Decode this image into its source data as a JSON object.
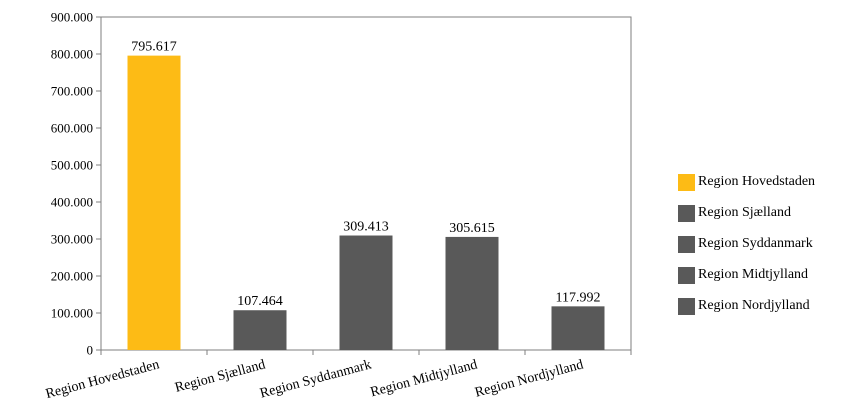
{
  "chart_data": {
    "type": "bar",
    "title": "",
    "xlabel": "",
    "ylabel": "",
    "categories": [
      "Region Hovedstaden",
      "Region Sjælland",
      "Region Syddanmark",
      "Region Midtjylland",
      "Region Nordjylland"
    ],
    "values": [
      795617,
      107464,
      309413,
      305615,
      117992
    ],
    "value_labels": [
      "795.617",
      "107.464",
      "309.413",
      "305.615",
      "117.992"
    ],
    "colors": [
      "#FDBB15",
      "#595959",
      "#595959",
      "#595959",
      "#595959"
    ],
    "ylim": [
      0,
      900000
    ],
    "yticks": [
      0,
      100000,
      200000,
      300000,
      400000,
      500000,
      600000,
      700000,
      800000,
      900000
    ],
    "ytick_labels": [
      "0",
      "100.000",
      "200.000",
      "300.000",
      "400.000",
      "500.000",
      "600.000",
      "700.000",
      "800.000",
      "900.000"
    ],
    "legend": {
      "position": "right",
      "entries": [
        {
          "label": "Region Hovedstaden",
          "color": "#FDBB15"
        },
        {
          "label": "Region Sjælland",
          "color": "#595959"
        },
        {
          "label": "Region Syddanmark",
          "color": "#595959"
        },
        {
          "label": "Region Midtjylland",
          "color": "#595959"
        },
        {
          "label": "Region Nordjylland",
          "color": "#595959"
        }
      ]
    },
    "grid": false
  }
}
